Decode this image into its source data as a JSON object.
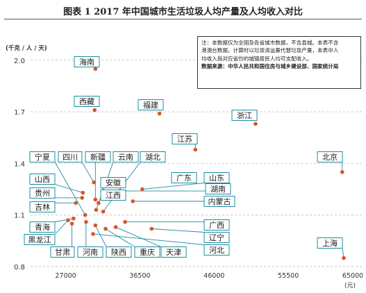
{
  "title": "图表 1   2017 年中国城市生活垃圾人均产量及人均收入对比",
  "note": {
    "line1": "注：本数据仅为全国及各省城市数据，不含县城。本表不含",
    "line2": "港澳台数据。计算时以垃圾清运量代替垃圾产量，本表中人",
    "line3": "均收入指对应省份的城镇居民人均可支配收入。",
    "source": "数据来源：中华人民共和国住房与城乡建设部、国家统计局"
  },
  "chart_data": {
    "type": "scatter",
    "title": "图表 1   2017 年中国城市生活垃圾人均产量及人均收入对比",
    "ylabel": "(千克 / 人 / 天)",
    "xlabel": "(元)",
    "xlim": [
      22500,
      65000
    ],
    "ylim": [
      0.8,
      2.1
    ],
    "xticks": [
      27000,
      36500,
      46000,
      55500,
      65000
    ],
    "yticks": [
      0.8,
      1.1,
      1.4,
      1.7,
      2.0
    ],
    "ytick_labels": [
      "0.8",
      "1.1",
      "1.4",
      "1.7",
      "2.0"
    ],
    "grid": "horizontal dashed",
    "point_color": "#d9542b",
    "label_color": "#1a8da0",
    "points": [
      {
        "name": "海南",
        "x": 30800,
        "y": 1.95
      },
      {
        "name": "西藏",
        "x": 30700,
        "y": 1.71
      },
      {
        "name": "福建",
        "x": 39000,
        "y": 1.69
      },
      {
        "name": "浙江",
        "x": 51300,
        "y": 1.63
      },
      {
        "name": "江苏",
        "x": 43600,
        "y": 1.48
      },
      {
        "name": "北京",
        "x": 62400,
        "y": 1.35
      },
      {
        "name": "宁夏",
        "x": 29500,
        "y": 1.1
      },
      {
        "name": "四川",
        "x": 30600,
        "y": 1.29
      },
      {
        "name": "新疆",
        "x": 30800,
        "y": 1.19
      },
      {
        "name": "云南",
        "x": 30900,
        "y": 1.13
      },
      {
        "name": "湖北",
        "x": 31800,
        "y": 1.12
      },
      {
        "name": "广东",
        "x": 40900,
        "y": 1.33
      },
      {
        "name": "山东",
        "x": 36800,
        "y": 1.25
      },
      {
        "name": "湖南",
        "x": 33900,
        "y": 1.24
      },
      {
        "name": "内蒙古",
        "x": 35600,
        "y": 1.18
      },
      {
        "name": "山西",
        "x": 29200,
        "y": 1.23
      },
      {
        "name": "安徽",
        "x": 31700,
        "y": 1.21
      },
      {
        "name": "贵州",
        "x": 29100,
        "y": 1.2
      },
      {
        "name": "江西",
        "x": 31200,
        "y": 1.17
      },
      {
        "name": "吉林",
        "x": 28300,
        "y": 1.17
      },
      {
        "name": "青海",
        "x": 28000,
        "y": 1.08
      },
      {
        "name": "广西",
        "x": 34600,
        "y": 1.06
      },
      {
        "name": "黑龙江",
        "x": 27300,
        "y": 1.07
      },
      {
        "name": "辽宁",
        "x": 38000,
        "y": 1.02
      },
      {
        "name": "河北",
        "x": 30500,
        "y": 0.99
      },
      {
        "name": "甘肃",
        "x": 27800,
        "y": 1.05
      },
      {
        "name": "河南",
        "x": 29600,
        "y": 1.06
      },
      {
        "name": "陕西",
        "x": 30800,
        "y": 1.04
      },
      {
        "name": "重庆",
        "x": 32100,
        "y": 1.02
      },
      {
        "name": "天津",
        "x": 33400,
        "y": 1.03
      },
      {
        "name": "上海",
        "x": 62600,
        "y": 0.85
      }
    ]
  }
}
